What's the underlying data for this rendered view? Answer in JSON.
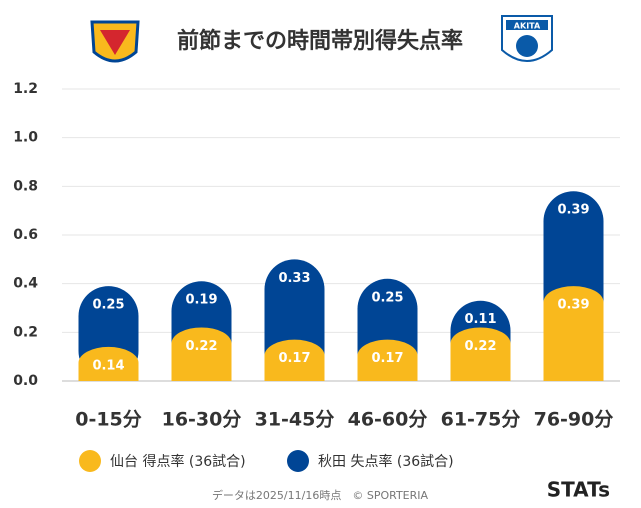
{
  "chart_data": {
    "type": "stacked-bar",
    "title": "前節までの時間帯別得失点率",
    "badge": "AKITA",
    "categories": [
      "0-15分",
      "16-30分",
      "31-45分",
      "46-60分",
      "61-75分",
      "76-90分"
    ],
    "series": [
      {
        "name": "仙台 得点率 (36試合)",
        "color": "#f9b91d",
        "values": [
          0.14,
          0.22,
          0.17,
          0.17,
          0.22,
          0.39
        ]
      },
      {
        "name": "秋田 失点率 (36試合)",
        "color": "#004595",
        "values": [
          0.25,
          0.19,
          0.33,
          0.25,
          0.11,
          0.39
        ]
      }
    ],
    "ylim": [
      0,
      1.2
    ],
    "yticks": [
      {
        "value": 0,
        "label": "0.0"
      },
      0.2,
      0.4,
      0.6,
      0.8,
      {
        "value": 1,
        "label": "1.0"
      },
      1.2
    ],
    "grid": true,
    "footer": "データは2025/11/16時点　© SPORTERIA",
    "brand": "STATs"
  }
}
